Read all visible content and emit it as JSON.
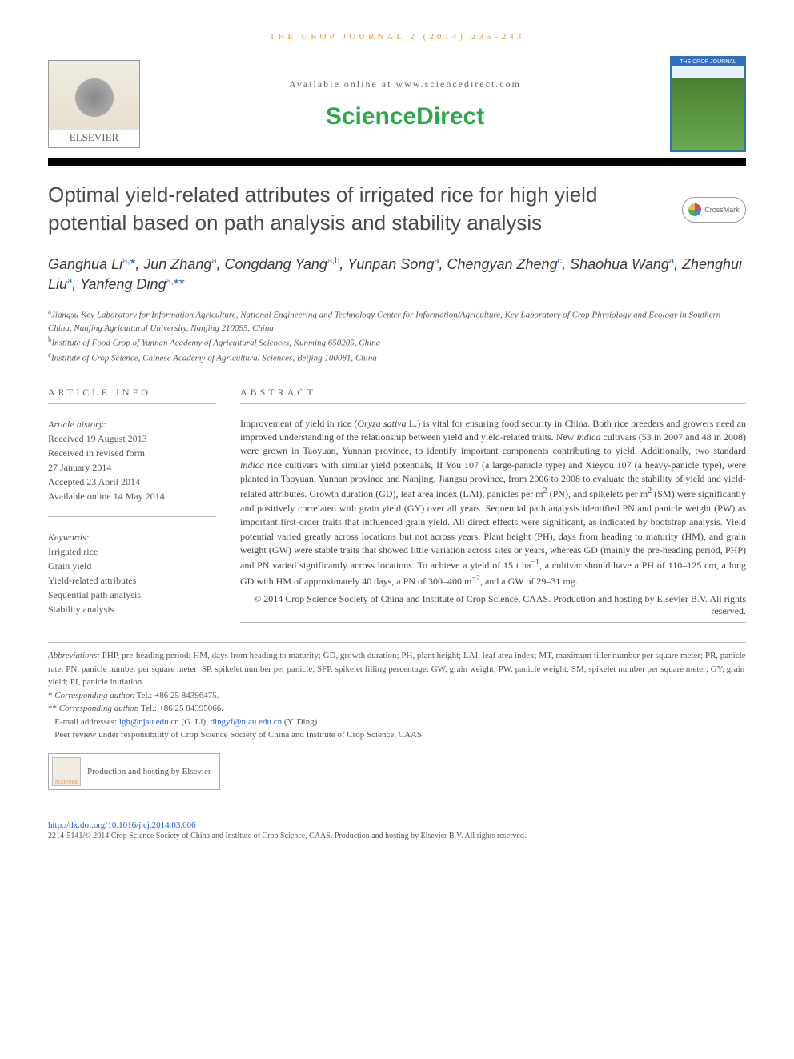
{
  "journal_ref": "THE CROP JOURNAL 2 (2014) 235–243",
  "available_text": "Available online at www.sciencedirect.com",
  "brand": "ScienceDirect",
  "elsevier_label": "ELSEVIER",
  "cover_title": "THE CROP JOURNAL",
  "crossmark_label": "CrossMark",
  "title": "Optimal yield-related attributes of irrigated rice for high yield potential based on path analysis and stability analysis",
  "authors_html": "Ganghua Li<sup>a,</sup><span class='ast'>*</span>, Jun Zhang<sup>a</sup>, Congdang Yang<sup>a,b</sup>, Yunpan Song<sup>a</sup>, Chengyan Zheng<sup>c</sup>, Shaohua Wang<sup>a</sup>, Zhenghui Liu<sup>a</sup>, Yanfeng Ding<sup>a,</sup><span class='ast'>**</span>",
  "affiliations": [
    "<sup>a</sup>Jiangsu Key Laboratory for Information Agriculture, National Engineering and Technology Center for Information/Agriculture, Key Laboratory of Crop Physiology and Ecology in Southern China, Nanjing Agricultural University, Nanjing 210095, China",
    "<sup>b</sup>Institute of Food Crop of Yunnan Academy of Agricultural Sciences, Kunming 650205, China",
    "<sup>c</sup>Institute of Crop Science, Chinese Academy of Agricultural Sciences, Beijing 100081, China"
  ],
  "info_heading": "ARTICLE INFO",
  "abstract_heading": "ABSTRACT",
  "history_label": "Article history:",
  "history": [
    "Received 19 August 2013",
    "Received in revised form",
    "27 January 2014",
    "Accepted 23 April 2014",
    "Available online 14 May 2014"
  ],
  "keywords_label": "Keywords:",
  "keywords": [
    "Irrigated rice",
    "Grain yield",
    "Yield-related attributes",
    "Sequential path analysis",
    "Stability analysis"
  ],
  "abstract": "Improvement of yield in rice (<span class='ital'>Oryza sativa</span> L.) is vital for ensuring food security in China. Both rice breeders and growers need an improved understanding of the relationship between yield and yield-related traits. New <span class='ital'>indica</span> cultivars (53 in 2007 and 48 in 2008) were grown in Taoyuan, Yunnan province, to identify important components contributing to yield. Additionally, two standard <span class='ital'>indica</span> rice cultivars with similar yield potentials, II You 107 (a large-panicle type) and Xieyou 107 (a heavy-panicle type), were planted in Taoyuan, Yunnan province and Nanjing, Jiangsu province, from 2006 to 2008 to evaluate the stability of yield and yield-related attributes. Growth duration (GD), leaf area index (LAI), panicles per m<sup>2</sup> (PN), and spikelets per m<sup>2</sup> (SM) were significantly and positively correlated with grain yield (GY) over all years. Sequential path analysis identified PN and panicle weight (PW) as important first-order traits that influenced grain yield. All direct effects were significant, as indicated by bootstrap analysis. Yield potential varied greatly across locations but not across years. Plant height (PH), days from heading to maturity (HM), and grain weight (GW) were stable traits that showed little variation across sites or years, whereas GD (mainly the pre-heading period, PHP) and PN varied significantly across locations. To achieve a yield of 15 t ha<sup>−1</sup>, a cultivar should have a PH of 110–125 cm, a long GD with HM of approximately 40 days, a PN of 300–400 m<sup>−2</sup>, and a GW of 29–31 mg.",
  "copyright_line": "© 2014 Crop Science Society of China and Institute of Crop Science, CAAS. Production and hosting by Elsevier B.V. All rights reserved.",
  "abbreviations": "<span class='ital'>Abbreviations:</span> PHP, pre-heading period; HM, days from heading to maturity; GD, growth duration; PH, plant height; LAI, leaf area index; MT, maximum tiller number per square meter; PR, panicle rate; PN, panicle number per square meter; SP, spikelet number per panicle; SFP, spikelet filling percentage; GW, grain weight; PW, panicle weight; SM, spikelet number per square meter; GY, grain yield; PI, panicle initiation.",
  "corr1": "* <span class='ital'>Corresponding author.</span> Tel.: +86 25 84396475.",
  "corr2": "** <span class='ital'>Corresponding author.</span> Tel.: +86 25 84395066.",
  "emails_label": "E-mail addresses:",
  "email1": "lgh@njau.edu.cn",
  "email1_who": "(G. Li),",
  "email2": "dingyf@njau.edu.cn",
  "email2_who": "(Y. Ding).",
  "peer_review": "Peer review under responsibility of Crop Science Society of China and Institute of Crop Science, CAAS.",
  "hosting_text": "Production and hosting by Elsevier",
  "doi": "http://dx.doi.org/10.1016/j.cj.2014.03.006",
  "bottom": "2214-5141/© 2014 Crop Science Society of China and Institute of Crop Science, CAAS. Production and hosting by Elsevier B.V. All rights reserved.",
  "colors": {
    "orange": "#e8964a",
    "green": "#2aa84a",
    "link": "#2060d0",
    "text": "#3a3a3a"
  }
}
